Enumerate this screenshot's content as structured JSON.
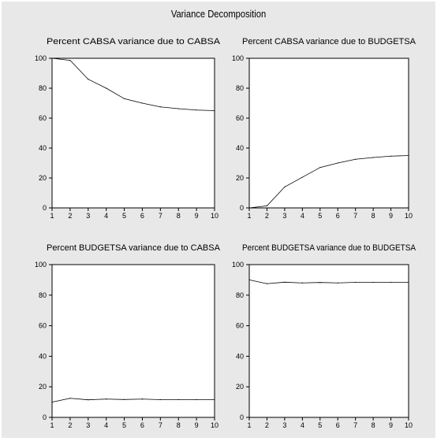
{
  "title": "Variance Decomposition",
  "chart_data": [
    {
      "type": "line",
      "title": "Percent CABSA variance due to CABSA",
      "x": [
        1,
        2,
        3,
        4,
        5,
        6,
        7,
        8,
        9,
        10
      ],
      "values": [
        100,
        98.6,
        86,
        80,
        73,
        70,
        67.5,
        66.3,
        65.4,
        65
      ],
      "ylim": [
        0,
        100
      ],
      "yticks": [
        0,
        20,
        40,
        60,
        80,
        100
      ],
      "xticks": [
        1,
        2,
        3,
        4,
        5,
        6,
        7,
        8,
        9,
        10
      ]
    },
    {
      "type": "line",
      "title": "Percent CABSA variance due to BUDGETSA",
      "x": [
        1,
        2,
        3,
        4,
        5,
        6,
        7,
        8,
        9,
        10
      ],
      "values": [
        0,
        1.4,
        14,
        20.5,
        27,
        30,
        32.5,
        33.7,
        34.6,
        35
      ],
      "ylim": [
        0,
        100
      ],
      "yticks": [
        0,
        20,
        40,
        60,
        80,
        100
      ],
      "xticks": [
        1,
        2,
        3,
        4,
        5,
        6,
        7,
        8,
        9,
        10
      ]
    },
    {
      "type": "line",
      "title": "Percent BUDGETSA variance due to CABSA",
      "x": [
        1,
        2,
        3,
        4,
        5,
        6,
        7,
        8,
        9,
        10
      ],
      "values": [
        10,
        12.5,
        11.5,
        12,
        11.7,
        12,
        11.6,
        11.6,
        11.6,
        11.6
      ],
      "ylim": [
        0,
        100
      ],
      "yticks": [
        0,
        20,
        40,
        60,
        80,
        100
      ],
      "xticks": [
        1,
        2,
        3,
        4,
        5,
        6,
        7,
        8,
        9,
        10
      ]
    },
    {
      "type": "line",
      "title": "Percent BUDGETSA variance due to BUDGETSA",
      "x": [
        1,
        2,
        3,
        4,
        5,
        6,
        7,
        8,
        9,
        10
      ],
      "values": [
        90,
        87.5,
        88.5,
        88,
        88.3,
        88,
        88.4,
        88.4,
        88.4,
        88.4
      ],
      "ylim": [
        0,
        100
      ],
      "yticks": [
        0,
        20,
        40,
        60,
        80,
        100
      ],
      "xticks": [
        1,
        2,
        3,
        4,
        5,
        6,
        7,
        8,
        9,
        10
      ]
    }
  ]
}
